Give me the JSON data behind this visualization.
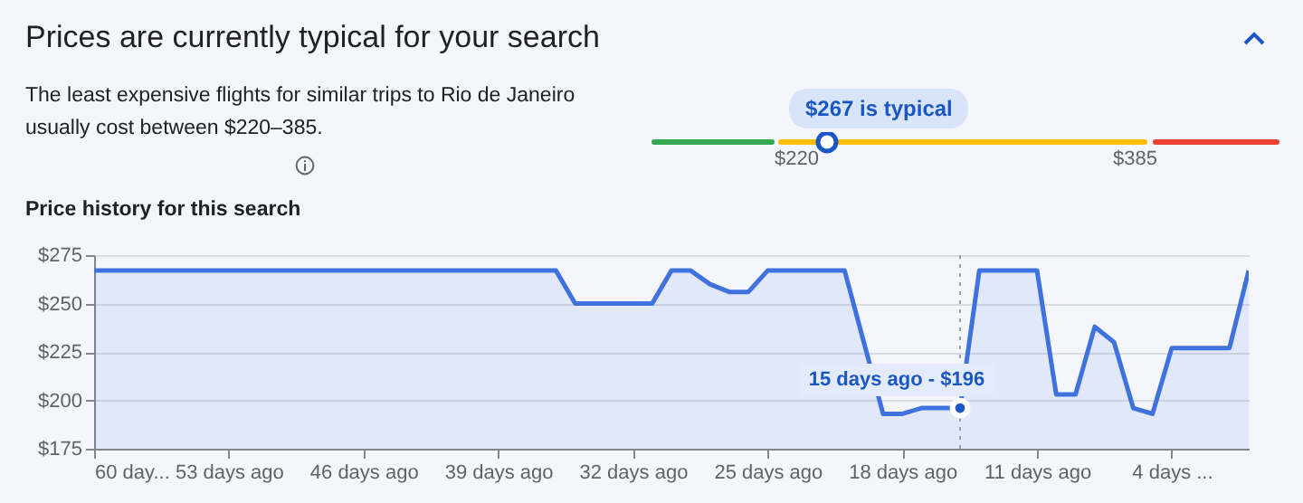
{
  "chart_data": {
    "type": "area",
    "title": "Prices are currently typical for your search",
    "subtitle": "Price history for this search",
    "annotations": [
      "The least expensive flights for similar trips to Rio de Janeiro usually cost between $220–385.",
      "$267 is typical",
      "$220",
      "$385",
      {
        "text": "15 days ago - $196",
        "x": -15,
        "y": 196
      }
    ],
    "x": [
      -60,
      -36,
      -35,
      -31,
      -30,
      -29,
      -28,
      -27,
      -26,
      -25,
      -21,
      -19,
      -18,
      -17,
      -16,
      -15,
      -14,
      -11,
      -10,
      -9,
      -8,
      -7,
      -6,
      -5,
      -4,
      -1,
      0
    ],
    "series": [
      {
        "color": "#3f72de",
        "values": [
          267,
          267,
          250,
          250,
          267,
          267,
          260,
          256,
          256,
          267,
          267,
          193,
          193,
          196,
          196,
          196,
          267,
          267,
          203,
          203,
          238,
          230,
          196,
          193,
          227,
          227,
          267
        ]
      }
    ],
    "xlim": [
      -60,
      0
    ],
    "xticks": [
      {
        "value": -60,
        "label": "60 day..."
      },
      {
        "value": -53,
        "label": "53 days ago"
      },
      {
        "value": -46,
        "label": "46 days ago"
      },
      {
        "value": -39,
        "label": "39 days ago"
      },
      {
        "value": -32,
        "label": "32 days ago"
      },
      {
        "value": -25,
        "label": "25 days ago"
      },
      {
        "value": -18,
        "label": "18 days ago"
      },
      {
        "value": -11,
        "label": "11 days ago"
      },
      {
        "value": -4,
        "label": "4 days ..."
      }
    ],
    "ylim": [
      175,
      275
    ],
    "yticks": [
      {
        "value": 175,
        "label": "$175"
      },
      {
        "value": 200,
        "label": "$200"
      },
      {
        "value": 225,
        "label": "$225"
      },
      {
        "value": 250,
        "label": "$250"
      },
      {
        "value": 275,
        "label": "$275"
      }
    ],
    "ref_lines": [
      {
        "axis": "x",
        "value": -15,
        "line_style": "dotted",
        "color": "#9aa0a6"
      }
    ],
    "grid": "y"
  }
}
